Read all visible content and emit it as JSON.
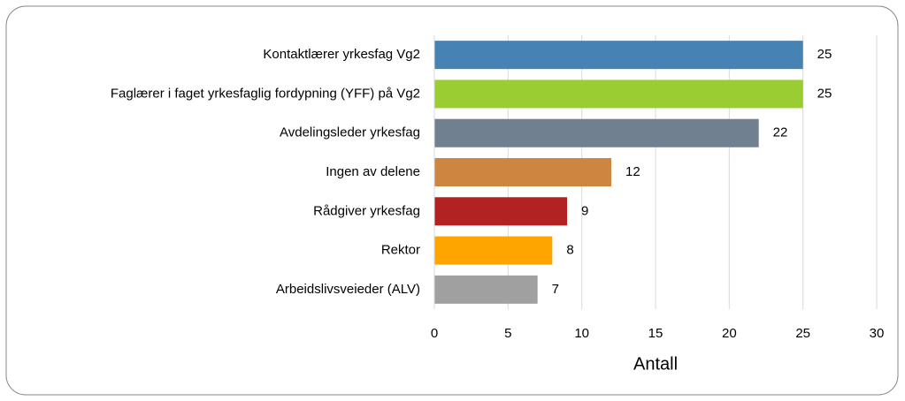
{
  "chart_data": {
    "type": "bar",
    "orientation": "horizontal",
    "categories": [
      "Kontaktlærer yrkesfag Vg2",
      "Faglærer i faget yrkesfaglig fordypning (YFF) på Vg2",
      "Avdelingsleder yrkesfag",
      "Ingen av delene",
      "Rådgiver yrkesfag",
      "Rektor",
      "Arbeidslivsveieder (ALV)"
    ],
    "values": [
      25,
      25,
      22,
      12,
      9,
      8,
      7
    ],
    "colors": [
      "#4682b4",
      "#9acd32",
      "#708090",
      "#cd853f",
      "#b22222",
      "#ffa500",
      "#a0a0a0"
    ],
    "x_label": "Antall",
    "xlim": [
      0,
      30
    ],
    "xticks": [
      0,
      5,
      10,
      15,
      20,
      25,
      30
    ],
    "grid": true
  }
}
